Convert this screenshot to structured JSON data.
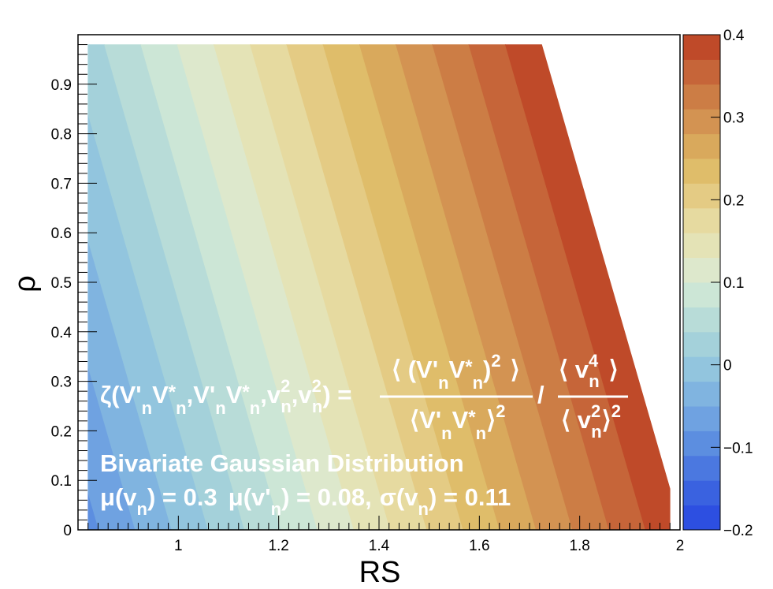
{
  "chart_data": {
    "type": "heatmap",
    "xlabel": "RS",
    "ylabel": "ρ",
    "xlim": [
      0.8,
      2.0
    ],
    "ylim": [
      0.0,
      1.0
    ],
    "data_xlim": [
      0.82,
      1.98
    ],
    "data_ylim": [
      0.0,
      0.98
    ],
    "zlim": [
      -0.2,
      0.4
    ],
    "z_model": {
      "intercept": -0.4275,
      "coef_x": 0.413,
      "coef_y": 0.1177
    },
    "n_levels": 20,
    "x_ticks": [
      1.0,
      1.2,
      1.4,
      1.6,
      1.8,
      2.0
    ],
    "x_tick_labels": [
      "1",
      "1.2",
      "1.4",
      "1.6",
      "1.8",
      "2"
    ],
    "y_ticks": [
      0,
      0.1,
      0.2,
      0.3,
      0.4,
      0.5,
      0.6,
      0.7,
      0.8,
      0.9
    ],
    "y_tick_labels": [
      "0",
      "0.1",
      "0.2",
      "0.3",
      "0.4",
      "0.5",
      "0.6",
      "0.7",
      "0.8",
      "0.9"
    ],
    "colorbar_ticks": [
      -0.2,
      -0.1,
      0,
      0.1,
      0.2,
      0.3,
      0.4
    ],
    "colorbar_tick_labels": [
      "−0.2",
      "−0.1",
      "0",
      "0.1",
      "0.2",
      "0.3",
      "0.4"
    ],
    "palette": [
      "#2d4fe1",
      "#3a62e0",
      "#4b78e0",
      "#5c8ee0",
      "#6fa2e1",
      "#80b4e0",
      "#92c5de",
      "#a4d1da",
      "#b8dcd8",
      "#cce6d6",
      "#dde8cc",
      "#e4e3b6",
      "#e6daa0",
      "#e4cb84",
      "#dfbd6a",
      "#d9a95c",
      "#d39352",
      "#cc7d45",
      "#c66539",
      "#bf4a29"
    ],
    "annotations": {
      "formula_lhs": "ζ(V'",
      "formula_rhs": "⟨ v",
      "title_line": "Bivariate Gaussian Distribution",
      "params_line": "μ(v"
    }
  },
  "text": {
    "zeta": "ζ(V'",
    "n": "n",
    "v": "V",
    "star_n": "*",
    "comma_v": ",V'",
    "v_small": "v",
    "sq": "2",
    "four": "4",
    "close_paren": ")",
    "eq": " = ",
    "slash": "/",
    "lang": "⟨",
    "rang": "⟩",
    "lang_num": "⟨ (V'",
    "num_close": ")",
    "den_lang": "⟨V'",
    "num2_lang": "⟨ v",
    "num2_rang": "⟩",
    "den2_lang": "⟨ v",
    "title_line": "Bivariate Gaussian Distribution",
    "mu": "μ(v",
    "mu_val": ") = 0.3",
    "mu_prime": "μ(v'",
    "mu_prime_val": ") = 0.08,",
    "sigma": "σ(v",
    "sigma_val": ") = 0.11"
  }
}
